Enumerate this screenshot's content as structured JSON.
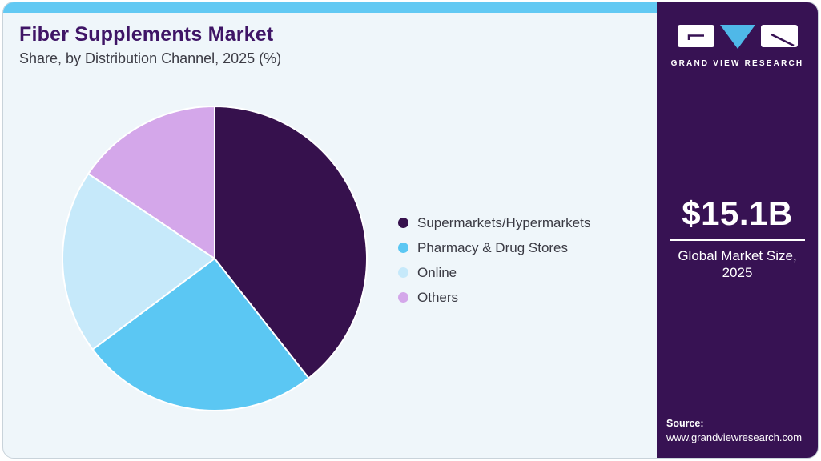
{
  "header": {
    "title": "Fiber Supplements Market",
    "subtitle": "Share, by Distribution Channel, 2025 (%)"
  },
  "chart_data": {
    "type": "pie",
    "title": "Fiber Supplements Market Share, by Distribution Channel, 2025 (%)",
    "categories": [
      "Supermarkets/Hypermarkets",
      "Pharmacy & Drug Stores",
      "Online",
      "Others"
    ],
    "values": [
      39.4,
      25.4,
      19.6,
      15.6
    ],
    "unit": "%",
    "colors": [
      "#36114d",
      "#5bc7f3",
      "#c6e9fa",
      "#d4a7ea"
    ],
    "start_angle_deg": 0,
    "direction": "clockwise",
    "legend_position": "right",
    "data_labels_shown": false
  },
  "sidebar": {
    "brand": "GRAND VIEW RESEARCH",
    "market_size": {
      "value": "$15.1B",
      "label": "Global Market Size, 2025"
    },
    "source": {
      "label": "Source:",
      "url": "www.grandviewresearch.com"
    },
    "background_color": "#371253",
    "accent_color": "#62c9f3",
    "logo_triangle_color": "#4fb8e8"
  }
}
